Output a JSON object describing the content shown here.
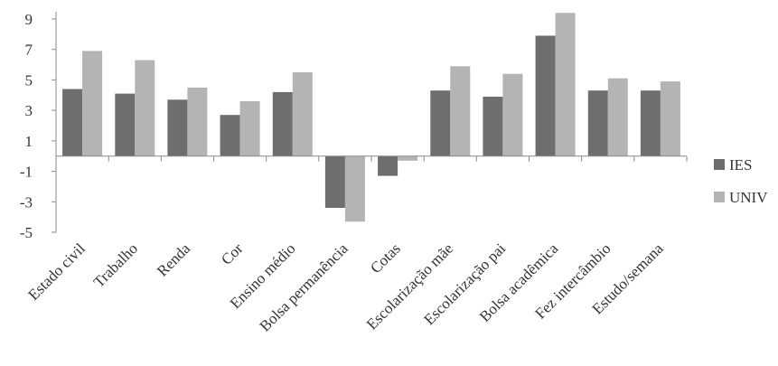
{
  "chart_data": {
    "type": "bar",
    "categories": [
      "Estado civil",
      "Trabalho",
      "Renda",
      "Cor",
      "Ensino médio",
      "Bolsa permanência",
      "Cotas",
      "Escolarização mãe",
      "Escolarização pai",
      "Bolsa acadêmica",
      "Fez intercâmbio",
      "Estudo/semana"
    ],
    "series": [
      {
        "name": "IES",
        "color": "#6e6e6e",
        "values": [
          4.4,
          4.1,
          3.7,
          2.7,
          4.2,
          -3.4,
          -1.3,
          4.3,
          3.9,
          7.9,
          4.3,
          4.3
        ]
      },
      {
        "name": "UNIV",
        "color": "#b4b4b4",
        "values": [
          6.9,
          6.3,
          4.5,
          3.6,
          5.5,
          -4.3,
          -0.3,
          5.9,
          5.4,
          9.4,
          5.1,
          4.9
        ]
      }
    ],
    "yticks": [
      "9",
      "7",
      "5",
      "3",
      "1",
      "-1",
      "-3",
      "-5"
    ],
    "ylim": [
      -5,
      9.5
    ],
    "legend_position": "right",
    "grid": false
  }
}
